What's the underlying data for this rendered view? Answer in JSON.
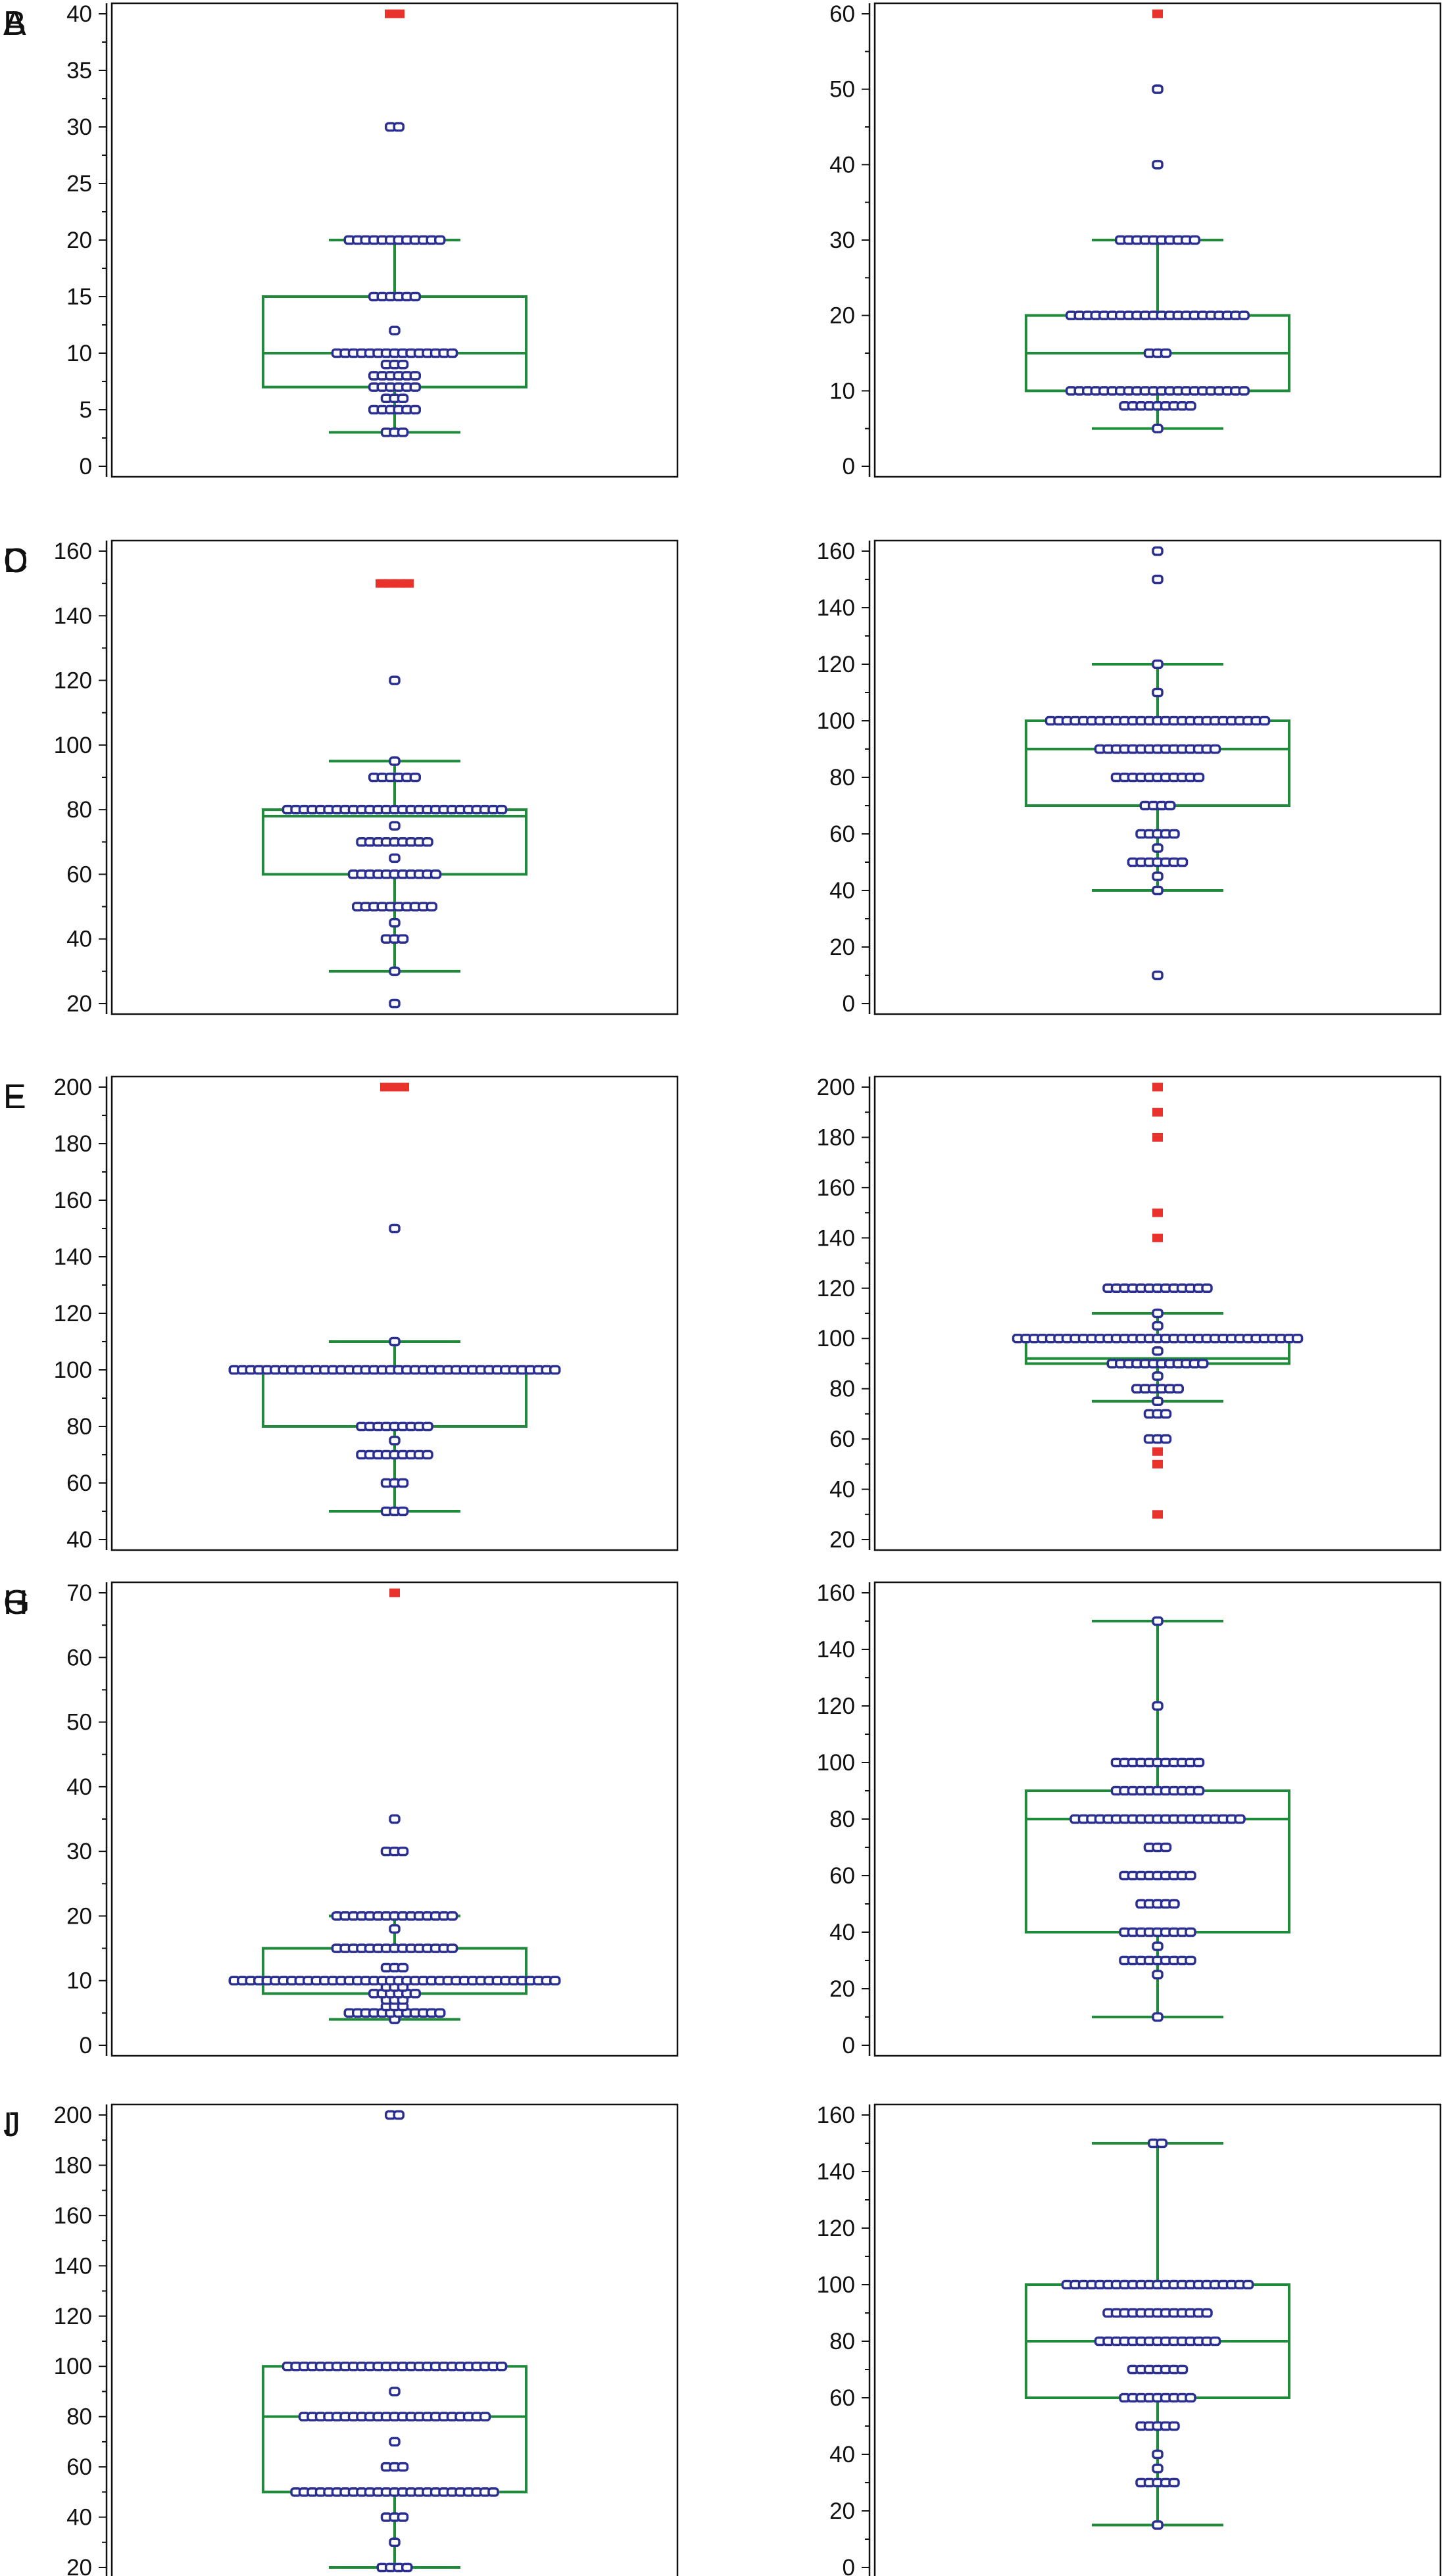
{
  "colors": {
    "box": "#1f8a3a",
    "point": "#2b2f8f",
    "outlier": "#e8322b",
    "axis": "#111111"
  },
  "chart_data": [
    {
      "panel": "A",
      "type": "box-dot",
      "ylim": [
        0,
        40
      ],
      "yticks": [
        0,
        5,
        10,
        15,
        20,
        25,
        30,
        35,
        40
      ],
      "box": {
        "q1": 7,
        "median": 10,
        "q3": 15,
        "whisker_low": 3,
        "whisker_high": 20
      },
      "points": [
        {
          "y": 3,
          "count": 3
        },
        {
          "y": 5,
          "count": 6
        },
        {
          "y": 6,
          "count": 3
        },
        {
          "y": 7,
          "count": 6
        },
        {
          "y": 8,
          "count": 6
        },
        {
          "y": 9,
          "count": 3
        },
        {
          "y": 10,
          "count": 15
        },
        {
          "y": 12,
          "count": 1
        },
        {
          "y": 15,
          "count": 6
        },
        {
          "y": 20,
          "count": 12
        },
        {
          "y": 30,
          "count": 2
        }
      ],
      "outliers": [
        {
          "y": 40,
          "count": 2
        }
      ]
    },
    {
      "panel": "B",
      "type": "box-dot",
      "ylim": [
        0,
        60
      ],
      "yticks": [
        0,
        10,
        20,
        30,
        40,
        50,
        60
      ],
      "box": {
        "q1": 10,
        "median": 15,
        "q3": 20,
        "whisker_low": 5,
        "whisker_high": 30
      },
      "points": [
        {
          "y": 5,
          "count": 1
        },
        {
          "y": 8,
          "count": 9
        },
        {
          "y": 10,
          "count": 22
        },
        {
          "y": 15,
          "count": 3
        },
        {
          "y": 20,
          "count": 22
        },
        {
          "y": 30,
          "count": 10
        },
        {
          "y": 40,
          "count": 1
        },
        {
          "y": 50,
          "count": 1
        }
      ],
      "outliers": [
        {
          "y": 60,
          "count": 1
        }
      ]
    },
    {
      "panel": "C",
      "type": "box-dot",
      "ylim": [
        20,
        160
      ],
      "yticks": [
        20,
        40,
        60,
        80,
        100,
        120,
        140,
        160
      ],
      "box": {
        "q1": 60,
        "median": 78,
        "q3": 80,
        "whisker_low": 30,
        "whisker_high": 95
      },
      "points": [
        {
          "y": 20,
          "count": 1
        },
        {
          "y": 30,
          "count": 1
        },
        {
          "y": 40,
          "count": 3
        },
        {
          "y": 45,
          "count": 1
        },
        {
          "y": 50,
          "count": 10
        },
        {
          "y": 60,
          "count": 11
        },
        {
          "y": 65,
          "count": 1
        },
        {
          "y": 70,
          "count": 9
        },
        {
          "y": 75,
          "count": 1
        },
        {
          "y": 80,
          "count": 27
        },
        {
          "y": 90,
          "count": 6
        },
        {
          "y": 95,
          "count": 1
        },
        {
          "y": 120,
          "count": 1
        }
      ],
      "outliers": [
        {
          "y": 150,
          "count": 4
        }
      ]
    },
    {
      "panel": "D",
      "type": "box-dot",
      "ylim": [
        0,
        160
      ],
      "yticks": [
        0,
        20,
        40,
        60,
        80,
        100,
        120,
        140,
        160
      ],
      "box": {
        "q1": 70,
        "median": 90,
        "q3": 100,
        "whisker_low": 40,
        "whisker_high": 120
      },
      "points": [
        {
          "y": 10,
          "count": 1
        },
        {
          "y": 40,
          "count": 1
        },
        {
          "y": 45,
          "count": 1
        },
        {
          "y": 50,
          "count": 7
        },
        {
          "y": 55,
          "count": 1
        },
        {
          "y": 60,
          "count": 5
        },
        {
          "y": 70,
          "count": 4
        },
        {
          "y": 80,
          "count": 11
        },
        {
          "y": 90,
          "count": 15
        },
        {
          "y": 100,
          "count": 27
        },
        {
          "y": 110,
          "count": 1
        },
        {
          "y": 120,
          "count": 1
        },
        {
          "y": 150,
          "count": 1
        },
        {
          "y": 160,
          "count": 1
        }
      ],
      "outliers": []
    },
    {
      "panel": "E",
      "type": "box-dot",
      "ylim": [
        40,
        200
      ],
      "yticks": [
        40,
        60,
        80,
        100,
        120,
        140,
        160,
        180,
        200
      ],
      "box": {
        "q1": 80,
        "median": 100,
        "q3": 100,
        "whisker_low": 50,
        "whisker_high": 110
      },
      "points": [
        {
          "y": 50,
          "count": 3
        },
        {
          "y": 60,
          "count": 3
        },
        {
          "y": 70,
          "count": 9
        },
        {
          "y": 75,
          "count": 1
        },
        {
          "y": 80,
          "count": 9
        },
        {
          "y": 100,
          "count": 40
        },
        {
          "y": 110,
          "count": 1
        },
        {
          "y": 150,
          "count": 1
        }
      ],
      "outliers": [
        {
          "y": 200,
          "count": 3
        }
      ]
    },
    {
      "panel": "F",
      "type": "box-dot",
      "ylim": [
        20,
        200
      ],
      "yticks": [
        20,
        40,
        60,
        80,
        100,
        120,
        140,
        160,
        180,
        200
      ],
      "box": {
        "q1": 90,
        "median": 92,
        "q3": 100,
        "whisker_low": 75,
        "whisker_high": 110
      },
      "points": [
        {
          "y": 60,
          "count": 3
        },
        {
          "y": 70,
          "count": 3
        },
        {
          "y": 75,
          "count": 1
        },
        {
          "y": 80,
          "count": 6
        },
        {
          "y": 85,
          "count": 1
        },
        {
          "y": 90,
          "count": 12
        },
        {
          "y": 95,
          "count": 1
        },
        {
          "y": 100,
          "count": 35
        },
        {
          "y": 105,
          "count": 1
        },
        {
          "y": 110,
          "count": 1
        },
        {
          "y": 120,
          "count": 13
        }
      ],
      "outliers": [
        {
          "y": 30,
          "count": 1
        },
        {
          "y": 50,
          "count": 1
        },
        {
          "y": 55,
          "count": 1
        },
        {
          "y": 140,
          "count": 1
        },
        {
          "y": 150,
          "count": 1
        },
        {
          "y": 180,
          "count": 1
        },
        {
          "y": 190,
          "count": 1
        },
        {
          "y": 200,
          "count": 1
        }
      ]
    },
    {
      "panel": "G",
      "type": "box-dot",
      "ylim": [
        0,
        70
      ],
      "yticks": [
        0,
        10,
        20,
        30,
        40,
        50,
        60,
        70
      ],
      "box": {
        "q1": 8,
        "median": 10,
        "q3": 15,
        "whisker_low": 4,
        "whisker_high": 20
      },
      "points": [
        {
          "y": 4,
          "count": 1
        },
        {
          "y": 5,
          "count": 12
        },
        {
          "y": 6,
          "count": 3
        },
        {
          "y": 7,
          "count": 3
        },
        {
          "y": 8,
          "count": 6
        },
        {
          "y": 9,
          "count": 3
        },
        {
          "y": 10,
          "count": 40
        },
        {
          "y": 12,
          "count": 3
        },
        {
          "y": 15,
          "count": 15
        },
        {
          "y": 18,
          "count": 1
        },
        {
          "y": 20,
          "count": 15
        },
        {
          "y": 30,
          "count": 3
        },
        {
          "y": 35,
          "count": 1
        }
      ],
      "outliers": [
        {
          "y": 70,
          "count": 1
        }
      ]
    },
    {
      "panel": "H",
      "type": "box-dot",
      "ylim": [
        0,
        160
      ],
      "yticks": [
        0,
        20,
        40,
        60,
        80,
        100,
        120,
        140,
        160
      ],
      "box": {
        "q1": 40,
        "median": 80,
        "q3": 90,
        "whisker_low": 10,
        "whisker_high": 150
      },
      "points": [
        {
          "y": 10,
          "count": 1
        },
        {
          "y": 25,
          "count": 1
        },
        {
          "y": 30,
          "count": 9
        },
        {
          "y": 35,
          "count": 1
        },
        {
          "y": 40,
          "count": 9
        },
        {
          "y": 50,
          "count": 5
        },
        {
          "y": 60,
          "count": 9
        },
        {
          "y": 70,
          "count": 3
        },
        {
          "y": 80,
          "count": 21
        },
        {
          "y": 90,
          "count": 11
        },
        {
          "y": 100,
          "count": 11
        },
        {
          "y": 120,
          "count": 1
        },
        {
          "y": 150,
          "count": 1
        }
      ],
      "outliers": []
    },
    {
      "panel": "I",
      "type": "box-dot",
      "ylim": [
        20,
        200
      ],
      "yticks": [
        20,
        40,
        60,
        80,
        100,
        120,
        140,
        160,
        180,
        200
      ],
      "box": {
        "q1": 50,
        "median": 80,
        "q3": 100,
        "whisker_low": 20,
        "whisker_high": 100
      },
      "points": [
        {
          "y": 20,
          "count": 4
        },
        {
          "y": 30,
          "count": 1
        },
        {
          "y": 40,
          "count": 3
        },
        {
          "y": 50,
          "count": 25
        },
        {
          "y": 60,
          "count": 3
        },
        {
          "y": 70,
          "count": 1
        },
        {
          "y": 80,
          "count": 23
        },
        {
          "y": 90,
          "count": 1
        },
        {
          "y": 100,
          "count": 27
        },
        {
          "y": 200,
          "count": 2
        }
      ],
      "outliers": []
    },
    {
      "panel": "J",
      "type": "box-dot",
      "ylim": [
        0,
        160
      ],
      "yticks": [
        0,
        20,
        40,
        60,
        80,
        100,
        120,
        140,
        160
      ],
      "box": {
        "q1": 60,
        "median": 80,
        "q3": 100,
        "whisker_low": 15,
        "whisker_high": 150
      },
      "points": [
        {
          "y": 15,
          "count": 1
        },
        {
          "y": 30,
          "count": 5
        },
        {
          "y": 35,
          "count": 1
        },
        {
          "y": 40,
          "count": 1
        },
        {
          "y": 50,
          "count": 5
        },
        {
          "y": 60,
          "count": 9
        },
        {
          "y": 70,
          "count": 7
        },
        {
          "y": 80,
          "count": 15
        },
        {
          "y": 90,
          "count": 13
        },
        {
          "y": 100,
          "count": 23
        },
        {
          "y": 150,
          "count": 2
        }
      ],
      "outliers": []
    }
  ]
}
